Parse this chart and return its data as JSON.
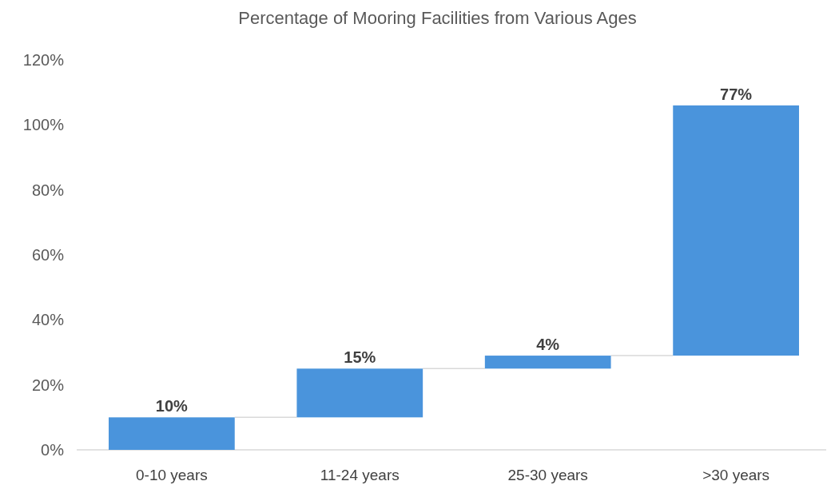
{
  "chart_data": {
    "type": "bar",
    "title": "Percentage of Mooring Facilities from Various Ages",
    "categories": [
      "0-10 years",
      "11-24 years",
      "25-30 years",
      ">30 years"
    ],
    "values": [
      10,
      15,
      4,
      77
    ],
    "base": [
      0,
      10,
      25,
      29
    ],
    "color": "#4a94dc",
    "value_labels": [
      "10%",
      "15%",
      "4%",
      "77%"
    ],
    "ylim": [
      0,
      120
    ],
    "yticks": [
      {
        "value": 0,
        "label": "0%"
      },
      {
        "value": 20,
        "label": "20%"
      },
      {
        "value": 40,
        "label": "40%"
      },
      {
        "value": 60,
        "label": "60%"
      },
      {
        "value": 80,
        "label": "80%"
      },
      {
        "value": 100,
        "label": "100%"
      },
      {
        "value": 120,
        "label": "120%"
      }
    ],
    "grid": false
  }
}
